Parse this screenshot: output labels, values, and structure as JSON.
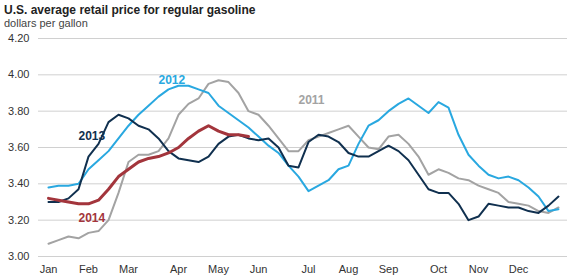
{
  "chart_data": {
    "type": "line",
    "title": "U.S. average retail price for regular gasoline",
    "subtitle": "dollars per gallon",
    "categories": [
      "Jan",
      null,
      null,
      null,
      "Feb",
      null,
      null,
      null,
      "Mar",
      null,
      null,
      null,
      null,
      "Apr",
      null,
      null,
      null,
      "May",
      null,
      null,
      null,
      "Jun",
      null,
      null,
      null,
      null,
      "Jul",
      null,
      null,
      null,
      "Aug",
      null,
      null,
      null,
      "Sep",
      null,
      null,
      null,
      null,
      "Oct",
      null,
      null,
      null,
      "Nov",
      null,
      null,
      null,
      "Dec",
      null,
      null,
      null,
      null
    ],
    "series": [
      {
        "name": "2011",
        "color": "#a3a3a3",
        "values": [
          3.07,
          3.09,
          3.11,
          3.1,
          3.13,
          3.14,
          3.2,
          3.35,
          3.52,
          3.56,
          3.56,
          3.58,
          3.65,
          3.78,
          3.84,
          3.87,
          3.95,
          3.97,
          3.96,
          3.9,
          3.8,
          3.78,
          3.72,
          3.65,
          3.58,
          3.58,
          3.64,
          3.66,
          3.68,
          3.7,
          3.72,
          3.66,
          3.6,
          3.59,
          3.66,
          3.67,
          3.62,
          3.55,
          3.45,
          3.48,
          3.46,
          3.43,
          3.42,
          3.39,
          3.37,
          3.35,
          3.3,
          3.29,
          3.28,
          3.25,
          3.24,
          3.27
        ]
      },
      {
        "name": "2012",
        "color": "#29a8e0",
        "values": [
          3.38,
          3.39,
          3.39,
          3.4,
          3.48,
          3.53,
          3.58,
          3.65,
          3.72,
          3.78,
          3.83,
          3.88,
          3.92,
          3.94,
          3.94,
          3.92,
          3.9,
          3.83,
          3.79,
          3.75,
          3.71,
          3.66,
          3.61,
          3.57,
          3.5,
          3.44,
          3.36,
          3.39,
          3.42,
          3.48,
          3.5,
          3.62,
          3.72,
          3.75,
          3.8,
          3.84,
          3.87,
          3.83,
          3.79,
          3.85,
          3.82,
          3.67,
          3.56,
          3.5,
          3.45,
          3.43,
          3.44,
          3.42,
          3.38,
          3.33,
          3.25,
          3.26
        ]
      },
      {
        "name": "2013",
        "color": "#10304f",
        "values": [
          3.3,
          3.3,
          3.32,
          3.37,
          3.55,
          3.62,
          3.74,
          3.78,
          3.76,
          3.72,
          3.7,
          3.65,
          3.58,
          3.54,
          3.53,
          3.52,
          3.55,
          3.62,
          3.66,
          3.67,
          3.65,
          3.64,
          3.65,
          3.6,
          3.5,
          3.49,
          3.63,
          3.67,
          3.66,
          3.63,
          3.57,
          3.55,
          3.55,
          3.58,
          3.61,
          3.58,
          3.53,
          3.45,
          3.37,
          3.35,
          3.35,
          3.29,
          3.2,
          3.22,
          3.29,
          3.28,
          3.27,
          3.27,
          3.25,
          3.24,
          3.28,
          3.33
        ]
      },
      {
        "name": "2014",
        "color": "#a3353c",
        "values": [
          3.32,
          3.31,
          3.3,
          3.29,
          3.29,
          3.31,
          3.37,
          3.44,
          3.48,
          3.52,
          3.54,
          3.55,
          3.57,
          3.6,
          3.65,
          3.69,
          3.72,
          3.69,
          3.67,
          3.67,
          3.66,
          null,
          null,
          null,
          null,
          null,
          null,
          null,
          null,
          null,
          null,
          null,
          null,
          null,
          null,
          null,
          null,
          null,
          null,
          null,
          null,
          null,
          null,
          null,
          null,
          null,
          null,
          null,
          null,
          null,
          null,
          null
        ]
      }
    ],
    "annotations": [
      {
        "text": "2012",
        "x": 11,
        "y": 3.97
      },
      {
        "text": "2011",
        "x": 25,
        "y": 3.86
      },
      {
        "text": "2013",
        "x": 3,
        "y": 3.66
      },
      {
        "text": "2014",
        "x": 3,
        "y": 3.21
      }
    ],
    "ylim": [
      3.0,
      4.2
    ],
    "yticks": [
      {
        "value": 3.0,
        "label": "3.00"
      },
      {
        "value": 3.2,
        "label": "3.20"
      },
      {
        "value": 3.4,
        "label": "3.40"
      },
      {
        "value": 3.6,
        "label": "3.60"
      },
      {
        "value": 3.8,
        "label": "3.80"
      },
      {
        "value": 4.0,
        "label": "4.00"
      },
      {
        "value": 4.2,
        "label": "4.20"
      }
    ],
    "grid": true
  }
}
